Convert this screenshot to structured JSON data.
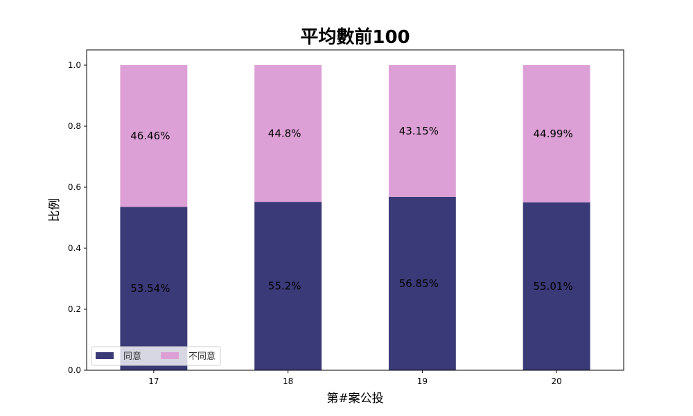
{
  "chart_data": {
    "type": "bar",
    "stacked": true,
    "title": "平均數前100",
    "xlabel": "第#案公投",
    "ylabel": "比例",
    "categories": [
      "17",
      "18",
      "19",
      "20"
    ],
    "ylim": [
      0,
      1.05
    ],
    "yticks": [
      "0.0",
      "0.2",
      "0.4",
      "0.6",
      "0.8",
      "1.0"
    ],
    "ytick_values": [
      0,
      0.2,
      0.4,
      0.6,
      0.8,
      1.0
    ],
    "series": [
      {
        "name": "同意",
        "color": "#3a3a78",
        "values": [
          0.5354,
          0.552,
          0.5685,
          0.5501
        ],
        "labels": [
          "53.54%",
          "55.2%",
          "56.85%",
          "55.01%"
        ]
      },
      {
        "name": "不同意",
        "color": "#dda0d6",
        "values": [
          0.4646,
          0.448,
          0.4315,
          0.4499
        ],
        "labels": [
          "46.46%",
          "44.8%",
          "43.15%",
          "44.99%"
        ]
      }
    ],
    "grid": false,
    "legend_position": "lower-left"
  }
}
